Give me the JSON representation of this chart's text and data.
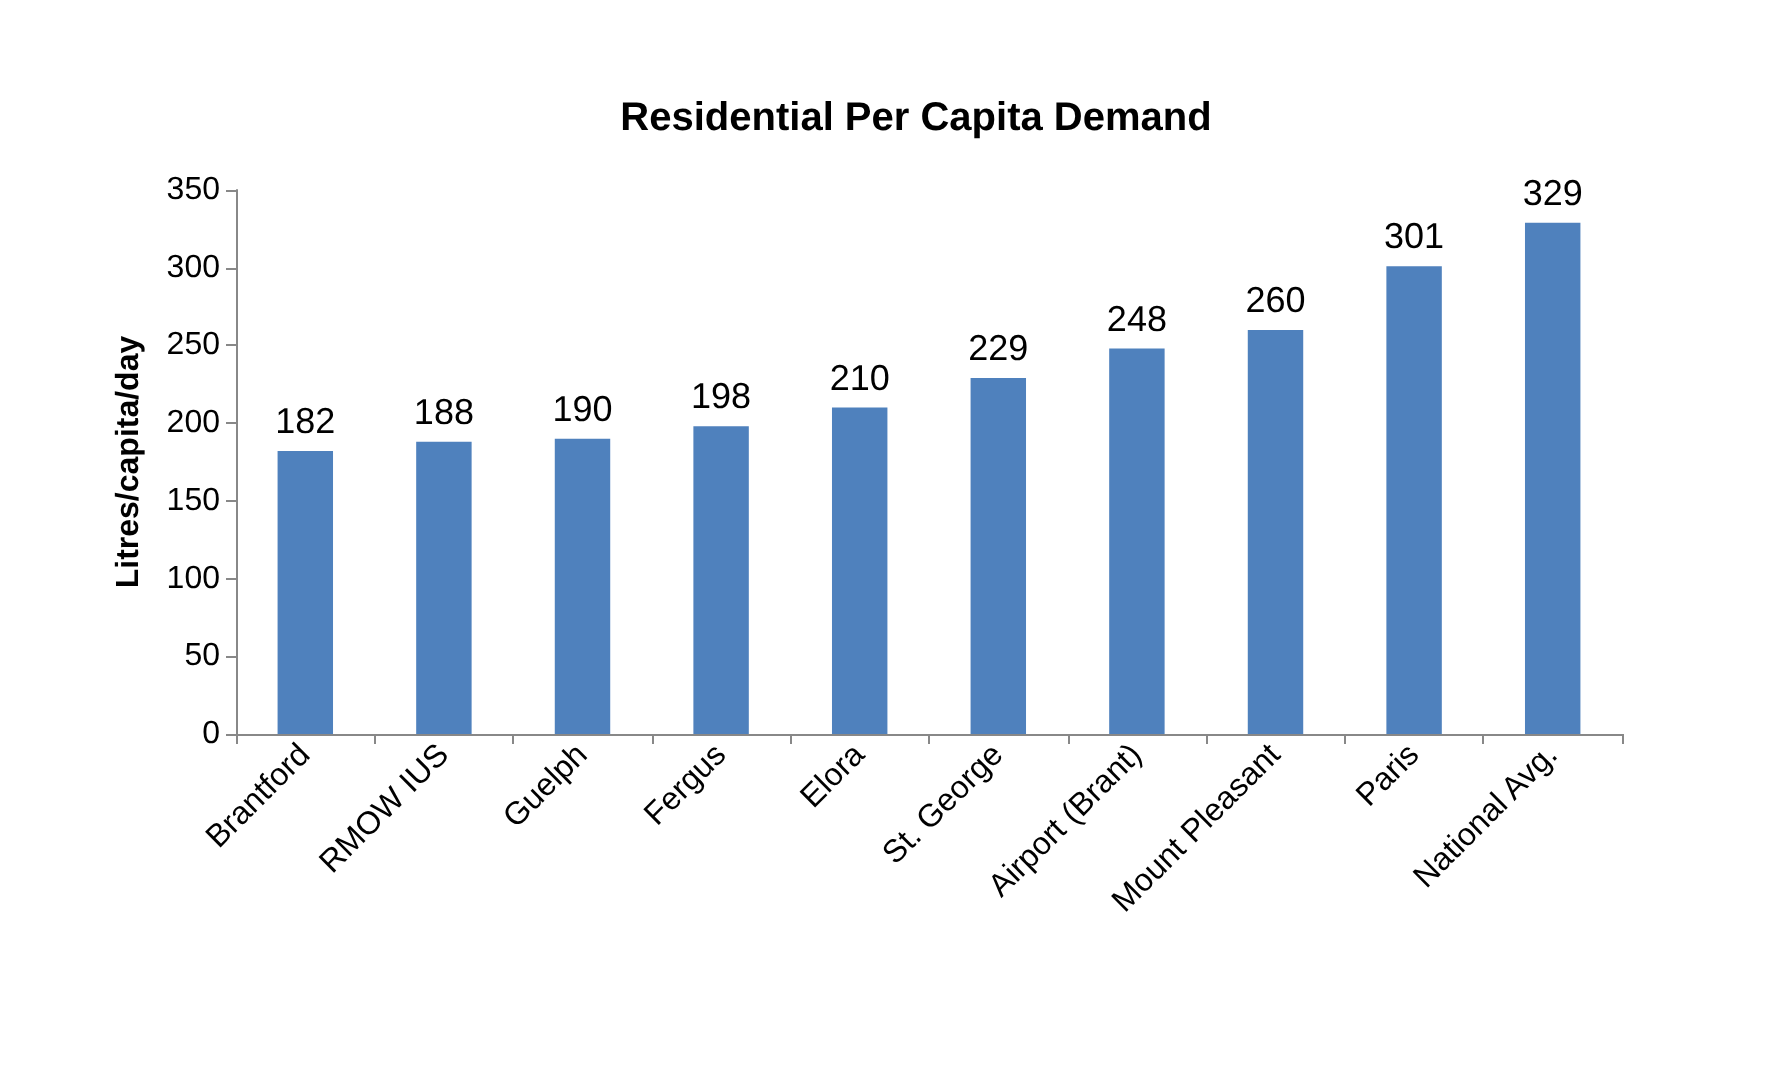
{
  "chart_data": {
    "type": "bar",
    "title": "Residential Per Capita Demand",
    "ylabel": "Litres/capita/day",
    "categories": [
      "Brantford",
      "RMOW IUS",
      "Guelph",
      "Fergus",
      "Elora",
      "St. George",
      "Airport (Brant)",
      "Mount Pleasant",
      "Paris",
      "National Avg."
    ],
    "values": [
      182,
      188,
      190,
      198,
      210,
      229,
      248,
      260,
      301,
      329
    ],
    "color": "#4f81bd",
    "ylim": [
      0,
      350
    ],
    "yticks": [
      0,
      50,
      100,
      150,
      200,
      250,
      300,
      350
    ],
    "grid": false,
    "data_labels": true
  }
}
